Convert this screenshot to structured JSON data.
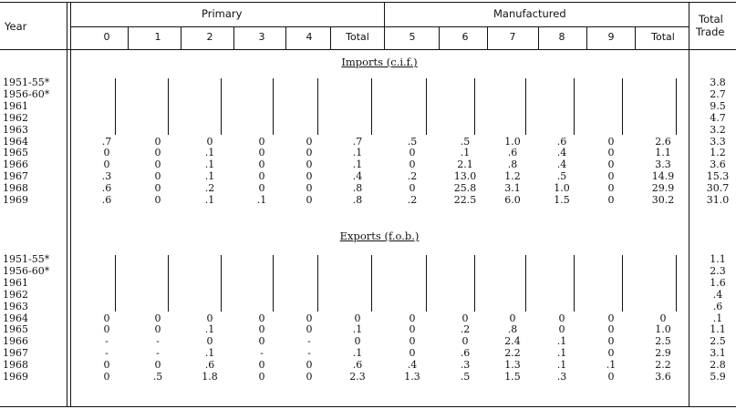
{
  "header": {
    "year": "Year",
    "primary": "Primary",
    "manufactured": "Manufactured",
    "total_trade_line1": "Total",
    "total_trade_line2": "Trade",
    "columns": [
      "0",
      "1",
      "2",
      "3",
      "4",
      "Total",
      "5",
      "6",
      "7",
      "8",
      "9",
      "Total"
    ]
  },
  "sections": [
    {
      "title": "Imports (c.i.f.)",
      "rows": [
        {
          "year": "1951-55*",
          "cells": [
            "",
            "",
            "",
            "",
            "",
            "",
            "",
            "",
            "",
            "",
            "",
            ""
          ],
          "total_trade": "3.8"
        },
        {
          "year": "1956-60*",
          "cells": [
            "",
            "",
            "",
            "",
            "",
            "",
            "",
            "",
            "",
            "",
            "",
            ""
          ],
          "total_trade": "2.7"
        },
        {
          "year": "1961",
          "cells": [
            "",
            "",
            "",
            "",
            "",
            "",
            "",
            "",
            "",
            "",
            "",
            ""
          ],
          "total_trade": "9.5"
        },
        {
          "year": "1962",
          "cells": [
            "",
            "",
            "",
            "",
            "",
            "",
            "",
            "",
            "",
            "",
            "",
            ""
          ],
          "total_trade": "4.7"
        },
        {
          "year": "1963",
          "cells": [
            "",
            "",
            "",
            "",
            "",
            "",
            "",
            "",
            "",
            "",
            "",
            ""
          ],
          "total_trade": "3.2"
        },
        {
          "year": "1964",
          "cells": [
            ".7",
            "0",
            "0",
            "0",
            "0",
            ".7",
            ".5",
            ".5",
            "1.0",
            ".6",
            "0",
            "2.6"
          ],
          "total_trade": "3.3"
        },
        {
          "year": "1965",
          "cells": [
            "0",
            "0",
            ".1",
            "0",
            "0",
            ".1",
            "0",
            ".1",
            ".6",
            ".4",
            "0",
            "1.1"
          ],
          "total_trade": "1.2"
        },
        {
          "year": "1966",
          "cells": [
            "0",
            "0",
            ".1",
            "0",
            "0",
            ".1",
            "0",
            "2.1",
            ".8",
            ".4",
            "0",
            "3.3"
          ],
          "total_trade": "3.6"
        },
        {
          "year": "1967",
          "cells": [
            ".3",
            "0",
            ".1",
            "0",
            "0",
            ".4",
            ".2",
            "13.0",
            "1.2",
            ".5",
            "0",
            "14.9"
          ],
          "total_trade": "15.3"
        },
        {
          "year": "1968",
          "cells": [
            ".6",
            "0",
            ".2",
            "0",
            "0",
            ".8",
            "0",
            "25.8",
            "3.1",
            "1.0",
            "0",
            "29.9"
          ],
          "total_trade": "30.7"
        },
        {
          "year": "1969",
          "cells": [
            ".6",
            "0",
            ".1",
            ".1",
            "0",
            ".8",
            ".2",
            "22.5",
            "6.0",
            "1.5",
            "0",
            "30.2"
          ],
          "total_trade": "31.0"
        }
      ]
    },
    {
      "title": "Exports (f.o.b.)",
      "rows": [
        {
          "year": "1951-55*",
          "cells": [
            "",
            "",
            "",
            "",
            "",
            "",
            "",
            "",
            "",
            "",
            "",
            ""
          ],
          "total_trade": "1.1"
        },
        {
          "year": "1956-60*",
          "cells": [
            "",
            "",
            "",
            "",
            "",
            "",
            "",
            "",
            "",
            "",
            "",
            ""
          ],
          "total_trade": "2.3"
        },
        {
          "year": "1961",
          "cells": [
            "",
            "",
            "",
            "",
            "",
            "",
            "",
            "",
            "",
            "",
            "",
            ""
          ],
          "total_trade": "1.6"
        },
        {
          "year": "1962",
          "cells": [
            "",
            "",
            "",
            "",
            "",
            "",
            "",
            "",
            "",
            "",
            "",
            ""
          ],
          "total_trade": ".4"
        },
        {
          "year": "1963",
          "cells": [
            "",
            "",
            "",
            "",
            "",
            "",
            "",
            "",
            "",
            "",
            "",
            ""
          ],
          "total_trade": ".6"
        },
        {
          "year": "1964",
          "cells": [
            "0",
            "0",
            "0",
            "0",
            "0",
            "0",
            "0",
            "0",
            "0",
            "0",
            "0",
            "0"
          ],
          "total_trade": ".1"
        },
        {
          "year": "1965",
          "cells": [
            "0",
            "0",
            ".1",
            "0",
            "0",
            ".1",
            "0",
            ".2",
            ".8",
            "0",
            "0",
            "1.0"
          ],
          "total_trade": "1.1"
        },
        {
          "year": "1966",
          "cells": [
            "-",
            "-",
            "0",
            "0",
            "-",
            "0",
            "0",
            "0",
            "2.4",
            ".1",
            "0",
            "2.5"
          ],
          "total_trade": "2.5"
        },
        {
          "year": "1967",
          "cells": [
            "-",
            "-",
            ".1",
            "-",
            "-",
            ".1",
            "0",
            ".6",
            "2.2",
            ".1",
            "0",
            "2.9"
          ],
          "total_trade": "3.1"
        },
        {
          "year": "1968",
          "cells": [
            "0",
            "0",
            ".6",
            "0",
            "0",
            ".6",
            ".4",
            ".3",
            "1.3",
            ".1",
            ".1",
            "2.2"
          ],
          "total_trade": "2.8"
        },
        {
          "year": "1969",
          "cells": [
            "0",
            ".5",
            "1.8",
            "0",
            "0",
            "2.3",
            "1.3",
            ".5",
            "1.5",
            ".3",
            "0",
            "3.6"
          ],
          "total_trade": "5.9"
        }
      ]
    }
  ]
}
